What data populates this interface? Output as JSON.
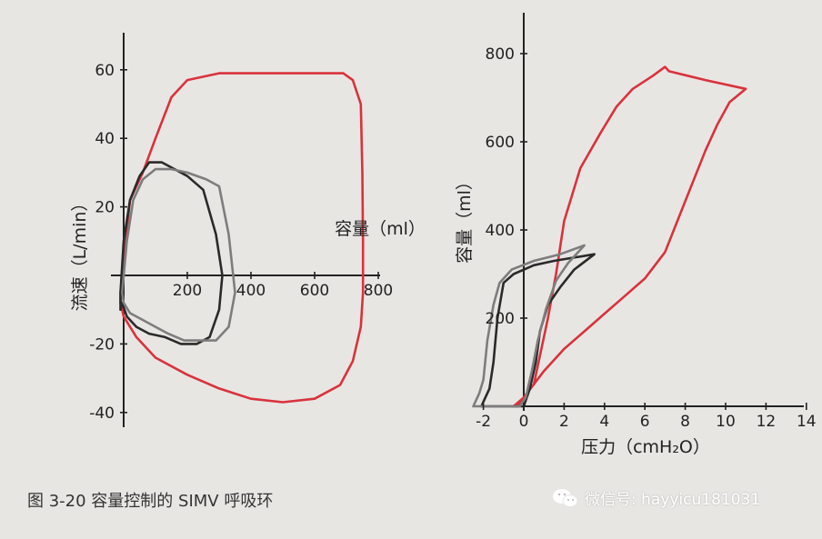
{
  "caption": "图 3-20   容量控制的 SIMV 呼吸环",
  "watermark": "微信号: hayyicu181031",
  "watermark_icon": "wechat-icon",
  "colors": {
    "red_loop": "#d9323c",
    "black_loop": "#2a2a2a",
    "gray_loop": "#7d7d7d",
    "axis": "#222222"
  },
  "chart_data": [
    {
      "type": "line",
      "title": "",
      "xlabel": "容量（ml）",
      "ylabel": "流速（L/min）",
      "xlim": [
        -50,
        900
      ],
      "ylim": [
        -40,
        70
      ],
      "xticks": [
        200,
        400,
        600,
        800
      ],
      "yticks": [
        -40,
        -20,
        20,
        40,
        60
      ],
      "grid": false,
      "series": [
        {
          "color": "red",
          "points": [
            [
              -10,
              -5
            ],
            [
              0,
              5
            ],
            [
              20,
              22
            ],
            [
              60,
              30
            ],
            [
              100,
              40
            ],
            [
              150,
              52
            ],
            [
              200,
              57
            ],
            [
              300,
              59
            ],
            [
              500,
              59
            ],
            [
              690,
              59
            ],
            [
              720,
              57
            ],
            [
              745,
              50
            ],
            [
              750,
              30
            ],
            [
              752,
              10
            ],
            [
              752,
              -5
            ],
            [
              745,
              -15
            ],
            [
              720,
              -25
            ],
            [
              680,
              -32
            ],
            [
              600,
              -36
            ],
            [
              500,
              -37
            ],
            [
              400,
              -36
            ],
            [
              300,
              -33
            ],
            [
              200,
              -29
            ],
            [
              100,
              -24
            ],
            [
              40,
              -18
            ],
            [
              0,
              -12
            ],
            [
              -10,
              -8
            ],
            [
              -10,
              -5
            ]
          ]
        },
        {
          "color": "black",
          "points": [
            [
              -10,
              -10
            ],
            [
              -10,
              -5
            ],
            [
              0,
              10
            ],
            [
              20,
              22
            ],
            [
              50,
              29
            ],
            [
              80,
              33
            ],
            [
              120,
              33
            ],
            [
              160,
              31
            ],
            [
              200,
              29
            ],
            [
              250,
              25
            ],
            [
              290,
              12
            ],
            [
              310,
              0
            ],
            [
              300,
              -10
            ],
            [
              270,
              -18
            ],
            [
              230,
              -20
            ],
            [
              180,
              -20
            ],
            [
              130,
              -18
            ],
            [
              80,
              -17
            ],
            [
              40,
              -15
            ],
            [
              10,
              -12
            ],
            [
              -5,
              -8
            ],
            [
              -10,
              -10
            ]
          ]
        },
        {
          "color": "gray",
          "points": [
            [
              -5,
              -5
            ],
            [
              10,
              10
            ],
            [
              30,
              22
            ],
            [
              60,
              28
            ],
            [
              100,
              31
            ],
            [
              150,
              31
            ],
            [
              200,
              30
            ],
            [
              260,
              28
            ],
            [
              300,
              26
            ],
            [
              330,
              12
            ],
            [
              350,
              -5
            ],
            [
              330,
              -15
            ],
            [
              290,
              -19
            ],
            [
              240,
              -19
            ],
            [
              190,
              -19
            ],
            [
              140,
              -17
            ],
            [
              100,
              -15
            ],
            [
              60,
              -13
            ],
            [
              20,
              -11
            ],
            [
              0,
              -8
            ],
            [
              -5,
              -5
            ]
          ]
        }
      ]
    },
    {
      "type": "line",
      "title": "",
      "xlabel": "压力（cmH₂O）",
      "ylabel": "容量（ml）",
      "xlim": [
        -3,
        14
      ],
      "ylim": [
        0,
        850
      ],
      "xticks": [
        -2,
        0,
        2,
        4,
        6,
        8,
        10,
        12,
        14
      ],
      "yticks": [
        200,
        400,
        600,
        800
      ],
      "grid": false,
      "series": [
        {
          "color": "red",
          "points": [
            [
              -0.5,
              0
            ],
            [
              0,
              20
            ],
            [
              0.5,
              50
            ],
            [
              1.2,
              200
            ],
            [
              1.6,
              300
            ],
            [
              2,
              420
            ],
            [
              2.8,
              540
            ],
            [
              3.8,
              620
            ],
            [
              4.6,
              680
            ],
            [
              5.4,
              720
            ],
            [
              6.4,
              750
            ],
            [
              7,
              770
            ],
            [
              7.2,
              760
            ],
            [
              9,
              740
            ],
            [
              11,
              720
            ],
            [
              10.2,
              690
            ],
            [
              9.6,
              640
            ],
            [
              9,
              580
            ],
            [
              8.3,
              500
            ],
            [
              7,
              350
            ],
            [
              6,
              290
            ],
            [
              5,
              250
            ],
            [
              4,
              210
            ],
            [
              3,
              170
            ],
            [
              2,
              130
            ],
            [
              1,
              80
            ],
            [
              0,
              20
            ],
            [
              -0.3,
              0
            ],
            [
              -0.5,
              0
            ]
          ]
        },
        {
          "color": "black",
          "points": [
            [
              -2.1,
              0
            ],
            [
              -1.9,
              20
            ],
            [
              -1.7,
              40
            ],
            [
              -1.5,
              100
            ],
            [
              -1.3,
              200
            ],
            [
              -1,
              280
            ],
            [
              -0.5,
              300
            ],
            [
              0.5,
              320
            ],
            [
              1.5,
              330
            ],
            [
              3.5,
              345
            ],
            [
              2.5,
              310
            ],
            [
              1.8,
              270
            ],
            [
              1.2,
              230
            ],
            [
              0.8,
              170
            ],
            [
              0.6,
              100
            ],
            [
              0.3,
              40
            ],
            [
              0,
              0
            ],
            [
              -2.1,
              0
            ]
          ]
        },
        {
          "color": "gray",
          "points": [
            [
              -2.5,
              0
            ],
            [
              -2.2,
              30
            ],
            [
              -2,
              60
            ],
            [
              -1.8,
              150
            ],
            [
              -1.5,
              230
            ],
            [
              -1.2,
              280
            ],
            [
              -0.6,
              310
            ],
            [
              0.5,
              330
            ],
            [
              1.8,
              345
            ],
            [
              3,
              365
            ],
            [
              2.2,
              325
            ],
            [
              1.6,
              285
            ],
            [
              1.1,
              220
            ],
            [
              0.7,
              150
            ],
            [
              0.4,
              80
            ],
            [
              0.1,
              20
            ],
            [
              -0.2,
              0
            ],
            [
              -2.5,
              0
            ]
          ]
        }
      ]
    }
  ]
}
